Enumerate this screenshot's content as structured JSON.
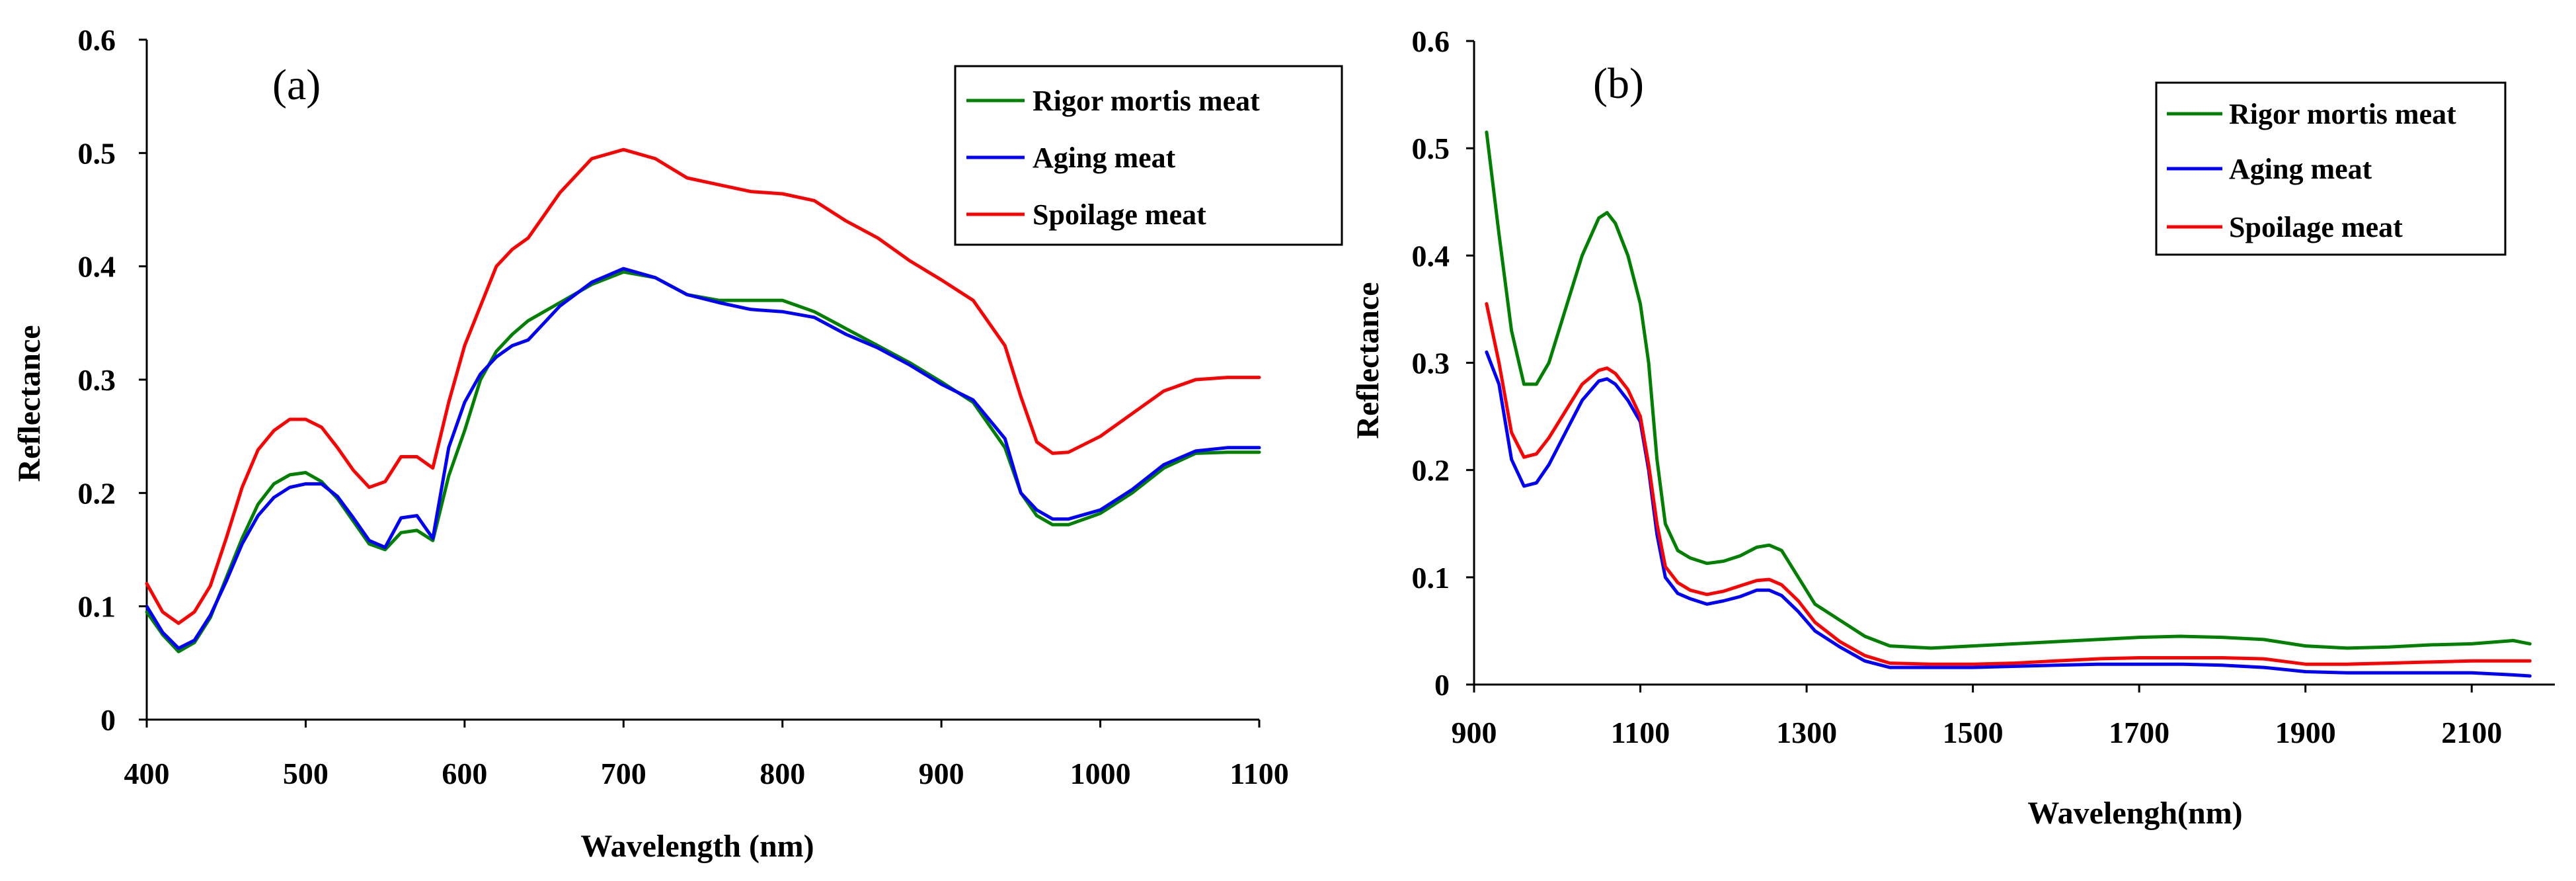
{
  "chart_data": [
    {
      "type": "line",
      "panel_label": "(a)",
      "xlabel": "Wavelength (nm)",
      "ylabel": "Reflectance",
      "xlim": [
        400,
        1100
      ],
      "ylim": [
        0,
        0.6
      ],
      "xticks": [
        400,
        500,
        600,
        700,
        800,
        900,
        1000,
        1100
      ],
      "yticks": [
        0,
        0.1,
        0.2,
        0.3,
        0.4,
        0.5,
        0.6
      ],
      "xtick_labels": [
        "400",
        "500",
        "600",
        "700",
        "800",
        "900",
        "1000",
        "1100"
      ],
      "ytick_labels": [
        "0",
        "0.1",
        "0.2",
        "0.3",
        "0.4",
        "0.5",
        "0.6"
      ],
      "grid": false,
      "legend_position": "top-right",
      "series": [
        {
          "name": "Rigor mortis meat",
          "color": "#008000",
          "x": [
            400,
            410,
            420,
            430,
            440,
            450,
            460,
            470,
            480,
            490,
            500,
            510,
            520,
            530,
            540,
            550,
            560,
            570,
            580,
            590,
            600,
            610,
            620,
            630,
            640,
            650,
            660,
            680,
            700,
            720,
            740,
            760,
            780,
            800,
            820,
            840,
            860,
            880,
            900,
            920,
            940,
            950,
            960,
            970,
            980,
            1000,
            1020,
            1040,
            1060,
            1080,
            1100
          ],
          "y": [
            0.095,
            0.075,
            0.06,
            0.068,
            0.09,
            0.125,
            0.16,
            0.19,
            0.208,
            0.216,
            0.218,
            0.21,
            0.195,
            0.175,
            0.155,
            0.15,
            0.165,
            0.167,
            0.158,
            0.215,
            0.255,
            0.3,
            0.325,
            0.34,
            0.352,
            0.36,
            0.368,
            0.384,
            0.395,
            0.39,
            0.375,
            0.37,
            0.37,
            0.37,
            0.36,
            0.345,
            0.33,
            0.315,
            0.298,
            0.28,
            0.24,
            0.2,
            0.18,
            0.172,
            0.172,
            0.182,
            0.2,
            0.222,
            0.235,
            0.236,
            0.236
          ]
        },
        {
          "name": "Aging meat",
          "color": "#0000ff",
          "x": [
            400,
            410,
            420,
            430,
            440,
            450,
            460,
            470,
            480,
            490,
            500,
            510,
            520,
            530,
            540,
            550,
            560,
            570,
            580,
            590,
            600,
            610,
            620,
            630,
            640,
            650,
            660,
            680,
            700,
            720,
            740,
            760,
            780,
            800,
            820,
            840,
            860,
            880,
            900,
            920,
            940,
            950,
            960,
            970,
            980,
            1000,
            1020,
            1040,
            1060,
            1080,
            1100
          ],
          "y": [
            0.1,
            0.077,
            0.063,
            0.07,
            0.092,
            0.122,
            0.155,
            0.18,
            0.196,
            0.205,
            0.208,
            0.208,
            0.197,
            0.178,
            0.158,
            0.152,
            0.178,
            0.18,
            0.16,
            0.24,
            0.28,
            0.305,
            0.32,
            0.33,
            0.335,
            0.35,
            0.365,
            0.386,
            0.398,
            0.39,
            0.375,
            0.368,
            0.362,
            0.36,
            0.355,
            0.34,
            0.328,
            0.313,
            0.296,
            0.282,
            0.248,
            0.2,
            0.185,
            0.177,
            0.177,
            0.185,
            0.203,
            0.225,
            0.237,
            0.24,
            0.24
          ]
        },
        {
          "name": "Spoilage meat",
          "color": "#ff0000",
          "x": [
            400,
            410,
            420,
            430,
            440,
            450,
            460,
            470,
            480,
            490,
            500,
            510,
            520,
            530,
            540,
            550,
            560,
            570,
            580,
            590,
            600,
            610,
            620,
            630,
            640,
            650,
            660,
            680,
            700,
            720,
            740,
            760,
            780,
            800,
            820,
            840,
            860,
            880,
            900,
            920,
            940,
            950,
            960,
            970,
            980,
            1000,
            1020,
            1040,
            1060,
            1080,
            1100
          ],
          "y": [
            0.12,
            0.095,
            0.085,
            0.095,
            0.118,
            0.16,
            0.205,
            0.238,
            0.255,
            0.265,
            0.265,
            0.258,
            0.24,
            0.22,
            0.205,
            0.21,
            0.232,
            0.232,
            0.222,
            0.28,
            0.33,
            0.365,
            0.4,
            0.415,
            0.425,
            0.445,
            0.465,
            0.495,
            0.503,
            0.495,
            0.478,
            0.472,
            0.466,
            0.464,
            0.458,
            0.44,
            0.425,
            0.405,
            0.388,
            0.37,
            0.33,
            0.285,
            0.245,
            0.235,
            0.236,
            0.25,
            0.27,
            0.29,
            0.3,
            0.302,
            0.302
          ]
        }
      ]
    },
    {
      "type": "line",
      "panel_label": "(b)",
      "xlabel": "Wavelengh(nm)",
      "ylabel": "Reflectance",
      "xlim": [
        900,
        2200
      ],
      "ylim": [
        0,
        0.6
      ],
      "xticks": [
        900,
        1100,
        1300,
        1500,
        1700,
        1900,
        2100
      ],
      "yticks": [
        0,
        0.1,
        0.2,
        0.3,
        0.4,
        0.5,
        0.6
      ],
      "xtick_labels": [
        "900",
        "1100",
        "1300",
        "1500",
        "1700",
        "1900",
        "2100"
      ],
      "ytick_labels": [
        "0",
        "0.1",
        "0.2",
        "0.3",
        "0.4",
        "0.5",
        "0.6"
      ],
      "grid": false,
      "legend_position": "top-right",
      "series": [
        {
          "name": "Rigor mortis meat",
          "color": "#008000",
          "x": [
            915,
            930,
            945,
            960,
            975,
            990,
            1010,
            1030,
            1050,
            1060,
            1070,
            1085,
            1100,
            1110,
            1120,
            1130,
            1145,
            1160,
            1180,
            1200,
            1220,
            1240,
            1255,
            1270,
            1290,
            1310,
            1340,
            1370,
            1400,
            1450,
            1500,
            1550,
            1600,
            1650,
            1700,
            1750,
            1800,
            1850,
            1900,
            1950,
            2000,
            2050,
            2100,
            2150,
            2170
          ],
          "y": [
            0.515,
            0.42,
            0.33,
            0.28,
            0.28,
            0.3,
            0.35,
            0.4,
            0.435,
            0.44,
            0.43,
            0.4,
            0.355,
            0.3,
            0.21,
            0.15,
            0.125,
            0.118,
            0.113,
            0.115,
            0.12,
            0.128,
            0.13,
            0.125,
            0.1,
            0.075,
            0.06,
            0.045,
            0.036,
            0.034,
            0.036,
            0.038,
            0.04,
            0.042,
            0.044,
            0.045,
            0.044,
            0.042,
            0.036,
            0.034,
            0.035,
            0.037,
            0.038,
            0.041,
            0.038
          ]
        },
        {
          "name": "Aging meat",
          "color": "#0000ff",
          "x": [
            915,
            930,
            945,
            960,
            975,
            990,
            1010,
            1030,
            1050,
            1060,
            1070,
            1085,
            1100,
            1110,
            1120,
            1130,
            1145,
            1160,
            1180,
            1200,
            1220,
            1240,
            1255,
            1270,
            1290,
            1310,
            1340,
            1370,
            1400,
            1450,
            1500,
            1550,
            1600,
            1650,
            1700,
            1750,
            1800,
            1850,
            1900,
            1950,
            2000,
            2050,
            2100,
            2150,
            2170
          ],
          "y": [
            0.31,
            0.28,
            0.21,
            0.185,
            0.188,
            0.205,
            0.235,
            0.265,
            0.283,
            0.285,
            0.28,
            0.265,
            0.245,
            0.2,
            0.14,
            0.1,
            0.085,
            0.08,
            0.075,
            0.078,
            0.082,
            0.088,
            0.088,
            0.083,
            0.068,
            0.05,
            0.035,
            0.022,
            0.016,
            0.016,
            0.016,
            0.017,
            0.018,
            0.019,
            0.019,
            0.019,
            0.018,
            0.016,
            0.012,
            0.011,
            0.011,
            0.011,
            0.011,
            0.009,
            0.008
          ]
        },
        {
          "name": "Spoilage meat",
          "color": "#ff0000",
          "x": [
            915,
            930,
            945,
            960,
            975,
            990,
            1010,
            1030,
            1050,
            1060,
            1070,
            1085,
            1100,
            1110,
            1120,
            1130,
            1145,
            1160,
            1180,
            1200,
            1220,
            1240,
            1255,
            1270,
            1290,
            1310,
            1340,
            1370,
            1400,
            1450,
            1500,
            1550,
            1600,
            1650,
            1700,
            1750,
            1800,
            1850,
            1900,
            1950,
            2000,
            2050,
            2100,
            2150,
            2170
          ],
          "y": [
            0.355,
            0.3,
            0.235,
            0.212,
            0.215,
            0.23,
            0.255,
            0.28,
            0.293,
            0.295,
            0.29,
            0.275,
            0.25,
            0.205,
            0.15,
            0.11,
            0.095,
            0.088,
            0.084,
            0.087,
            0.092,
            0.097,
            0.098,
            0.093,
            0.078,
            0.058,
            0.04,
            0.027,
            0.02,
            0.019,
            0.019,
            0.02,
            0.022,
            0.024,
            0.025,
            0.025,
            0.025,
            0.024,
            0.019,
            0.019,
            0.02,
            0.021,
            0.022,
            0.022,
            0.022
          ]
        }
      ]
    }
  ]
}
